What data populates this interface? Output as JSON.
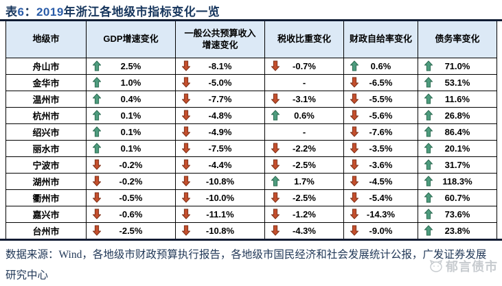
{
  "title": {
    "segments": [
      {
        "text": "表",
        "style": "navy"
      },
      {
        "text": "6",
        "style": "blue"
      },
      {
        "text": "：",
        "style": "navy"
      },
      {
        "text": "2019",
        "style": "blue"
      },
      {
        "text": "年浙江各地级市指标变化一览",
        "style": "navy"
      }
    ],
    "full_text": "表6：2019年浙江各地级市指标变化一览"
  },
  "table": {
    "columns": [
      "地级市",
      "GDP增速变化",
      "一般公共预算收入\n增速变化",
      "税收比重变化",
      "财政自给率变化",
      "债务率变化"
    ],
    "rows": [
      {
        "city": "舟山市",
        "cells": [
          {
            "dir": "up",
            "value": "2.5%"
          },
          {
            "dir": "down",
            "value": "-8.1%"
          },
          {
            "dir": "down",
            "value": "-0.7%"
          },
          {
            "dir": "up",
            "value": "0.6%"
          },
          {
            "dir": "up",
            "value": "71.0%"
          }
        ]
      },
      {
        "city": "金华市",
        "cells": [
          {
            "dir": "up",
            "value": "1.0%"
          },
          {
            "dir": "down",
            "value": "-5.0%"
          },
          {
            "dir": "none",
            "value": "-"
          },
          {
            "dir": "down",
            "value": "-6.5%"
          },
          {
            "dir": "up",
            "value": "53.1%"
          }
        ]
      },
      {
        "city": "温州市",
        "cells": [
          {
            "dir": "up",
            "value": "0.4%"
          },
          {
            "dir": "down",
            "value": "-7.7%"
          },
          {
            "dir": "down",
            "value": "-3.1%"
          },
          {
            "dir": "down",
            "value": "-5.5%"
          },
          {
            "dir": "up",
            "value": "11.6%"
          }
        ]
      },
      {
        "city": "杭州市",
        "cells": [
          {
            "dir": "up",
            "value": "0.1%"
          },
          {
            "dir": "down",
            "value": "-4.8%"
          },
          {
            "dir": "up",
            "value": "0.6%"
          },
          {
            "dir": "down",
            "value": "-5.6%"
          },
          {
            "dir": "up",
            "value": "26.8%"
          }
        ]
      },
      {
        "city": "绍兴市",
        "cells": [
          {
            "dir": "up",
            "value": "0.1%"
          },
          {
            "dir": "down",
            "value": "-4.9%"
          },
          {
            "dir": "none",
            "value": "-"
          },
          {
            "dir": "down",
            "value": "-7.6%"
          },
          {
            "dir": "up",
            "value": "86.4%"
          }
        ]
      },
      {
        "city": "丽水市",
        "cells": [
          {
            "dir": "up",
            "value": "0.1%"
          },
          {
            "dir": "down",
            "value": "-7.5%"
          },
          {
            "dir": "down",
            "value": "-2.2%"
          },
          {
            "dir": "down",
            "value": "-3.5%"
          },
          {
            "dir": "up",
            "value": "20.1%"
          }
        ]
      },
      {
        "city": "宁波市",
        "cells": [
          {
            "dir": "down",
            "value": "-0.2%"
          },
          {
            "dir": "down",
            "value": "-4.4%"
          },
          {
            "dir": "down",
            "value": "-2.5%"
          },
          {
            "dir": "down",
            "value": "-3.6%"
          },
          {
            "dir": "up",
            "value": "31.7%"
          }
        ]
      },
      {
        "city": "湖州市",
        "cells": [
          {
            "dir": "down",
            "value": "-0.2%"
          },
          {
            "dir": "down",
            "value": "-10.8%"
          },
          {
            "dir": "up",
            "value": "1.7%"
          },
          {
            "dir": "down",
            "value": "-4.5%"
          },
          {
            "dir": "up",
            "value": "118.3%"
          }
        ]
      },
      {
        "city": "衢州市",
        "cells": [
          {
            "dir": "down",
            "value": "-0.5%"
          },
          {
            "dir": "down",
            "value": "-10.0%"
          },
          {
            "dir": "down",
            "value": "-2.5%"
          },
          {
            "dir": "down",
            "value": "-5.4%"
          },
          {
            "dir": "up",
            "value": "60.7%"
          }
        ]
      },
      {
        "city": "嘉兴市",
        "cells": [
          {
            "dir": "down",
            "value": "-0.6%"
          },
          {
            "dir": "down",
            "value": "-11.1%"
          },
          {
            "dir": "down",
            "value": "-1.2%"
          },
          {
            "dir": "down",
            "value": "-14.3%"
          },
          {
            "dir": "up",
            "value": "73.6%"
          }
        ]
      },
      {
        "city": "台州市",
        "cells": [
          {
            "dir": "down",
            "value": "-2.5%"
          },
          {
            "dir": "down",
            "value": "-10.8%"
          },
          {
            "dir": "down",
            "value": "-4.3%"
          },
          {
            "dir": "down",
            "value": "-9.0%"
          },
          {
            "dir": "up",
            "value": "23.8%"
          }
        ]
      }
    ]
  },
  "footer": {
    "text": "数据来源：Wind，各地级市财政预算执行报告，各地级市国民经济和社会发展统计公报，广发证券发展研究中心"
  },
  "watermark": {
    "text": "郁言债市"
  },
  "colors": {
    "up_arrow": "#4E9C7E",
    "up_arrow_stroke": "#2C6B51",
    "down_arrow": "#C44F2D",
    "down_arrow_stroke": "#7E3018",
    "header_bg": "#DCE9F6",
    "title_navy": "#17365D",
    "title_blue": "#2A5CA8",
    "rule": "#101C33"
  }
}
